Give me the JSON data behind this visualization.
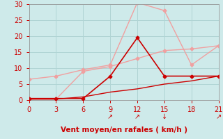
{
  "xlabel": "Vent moyen/en rafales ( km/h )",
  "bg_color": "#ceeaea",
  "grid_color": "#b0d4d4",
  "xlim": [
    0,
    21
  ],
  "ylim": [
    0,
    30
  ],
  "xticks": [
    0,
    3,
    6,
    9,
    12,
    15,
    18,
    21
  ],
  "yticks": [
    0,
    5,
    10,
    15,
    20,
    25,
    30
  ],
  "line_gust_light": {
    "x": [
      0,
      3,
      6,
      9,
      12,
      15,
      18,
      21
    ],
    "y": [
      6.5,
      7.5,
      9.5,
      11.0,
      30.5,
      28.0,
      11.0,
      17.0
    ],
    "color": "#f0a0a0",
    "marker": "D",
    "markersize": 2.5,
    "linewidth": 1.0
  },
  "line_mean_light": {
    "x": [
      0,
      3,
      6,
      9,
      12,
      15,
      18,
      21
    ],
    "y": [
      0.3,
      0.3,
      9.0,
      10.5,
      13.0,
      15.5,
      16.0,
      17.0
    ],
    "color": "#f0a0a0",
    "marker": "D",
    "markersize": 2.5,
    "linewidth": 1.0
  },
  "line_gust_dark": {
    "x": [
      0,
      3,
      6,
      9,
      12,
      15,
      18,
      21
    ],
    "y": [
      0.5,
      0.5,
      0.5,
      7.5,
      19.5,
      7.5,
      7.5,
      7.5
    ],
    "color": "#cc0000",
    "marker": "D",
    "markersize": 2.5,
    "linewidth": 1.2
  },
  "line_mean_solid": {
    "x": [
      0,
      3,
      6,
      9,
      12,
      15,
      18,
      21
    ],
    "y": [
      0.3,
      0.3,
      1.0,
      2.5,
      3.5,
      5.0,
      6.0,
      7.5
    ],
    "color": "#cc0000",
    "marker": null,
    "linewidth": 1.0,
    "linestyle": "-"
  },
  "arrows": [
    {
      "x": 9,
      "text": "↗"
    },
    {
      "x": 12,
      "text": "↗"
    },
    {
      "x": 15,
      "text": "↓"
    },
    {
      "x": 21,
      "text": "↗"
    }
  ],
  "tick_color": "#cc0000",
  "label_color": "#cc0000",
  "label_fontsize": 7.5,
  "tick_fontsize": 7
}
